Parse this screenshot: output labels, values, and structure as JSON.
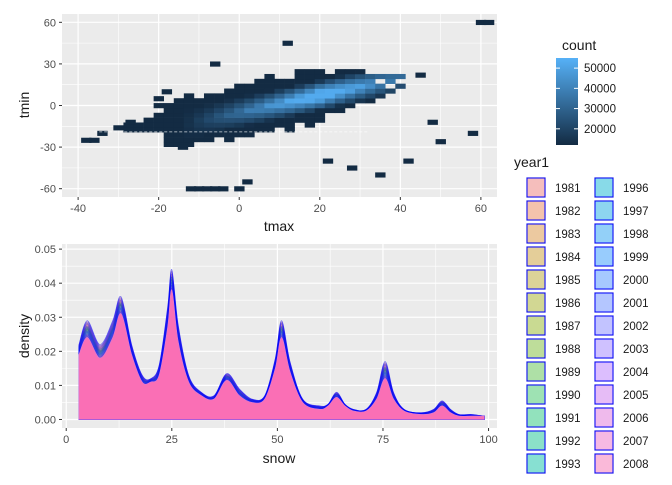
{
  "chart_data": [
    {
      "type": "heatmap",
      "xlabel": "tmax",
      "ylabel": "tmin",
      "xlim": [
        -44,
        64
      ],
      "ylim": [
        -66,
        66
      ],
      "xticks": [
        "-40",
        "-20",
        "0",
        "20",
        "40",
        "60"
      ],
      "yticks": [
        "-60",
        "-30",
        "0",
        "30",
        "60"
      ],
      "legend": {
        "title": "count",
        "ticks": [
          "20000",
          "30000",
          "40000",
          "50000"
        ],
        "range": [
          12000,
          55000
        ],
        "low_color": "#132B43",
        "high_color": "#56B1F7",
        "placement": "right"
      },
      "grid": true
    },
    {
      "type": "area",
      "xlabel": "snow",
      "ylabel": "density",
      "xlim": [
        -1,
        102
      ],
      "ylim": [
        -0.0025,
        0.0515
      ],
      "xticks": [
        "0",
        "25",
        "50",
        "75",
        "100"
      ],
      "yticks": [
        "0.00",
        "0.01",
        "0.02",
        "0.03",
        "0.04",
        "0.05"
      ],
      "x": [
        3,
        5,
        8,
        11,
        13,
        15.5,
        18,
        20,
        22,
        24,
        25,
        26.5,
        29,
        32,
        35,
        38,
        41,
        44,
        47,
        49.5,
        51,
        53,
        56,
        60,
        62,
        64,
        66,
        68,
        71,
        73.5,
        75.5,
        77.5,
        80,
        84,
        87,
        89,
        91,
        93,
        96,
        99
      ],
      "series_top": {
        "name": "1981",
        "values": [
          0.022,
          0.029,
          0.022,
          0.029,
          0.036,
          0.022,
          0.013,
          0.012,
          0.016,
          0.033,
          0.044,
          0.028,
          0.013,
          0.008,
          0.007,
          0.0135,
          0.009,
          0.006,
          0.007,
          0.018,
          0.029,
          0.017,
          0.006,
          0.004,
          0.0045,
          0.008,
          0.0045,
          0.003,
          0.003,
          0.008,
          0.017,
          0.008,
          0.003,
          0.002,
          0.003,
          0.0055,
          0.003,
          0.0015,
          0.0015,
          0.001
        ]
      },
      "series_bottom": {
        "name": "2008",
        "values": [
          0.019,
          0.024,
          0.018,
          0.024,
          0.031,
          0.019,
          0.011,
          0.011,
          0.013,
          0.027,
          0.038,
          0.023,
          0.011,
          0.007,
          0.006,
          0.0115,
          0.007,
          0.005,
          0.006,
          0.015,
          0.024,
          0.014,
          0.005,
          0.003,
          0.004,
          0.0065,
          0.004,
          0.0025,
          0.0025,
          0.006,
          0.012,
          0.006,
          0.0025,
          0.0015,
          0.002,
          0.004,
          0.002,
          0.001,
          0.001,
          0.001
        ]
      },
      "fill_colors": [
        "#F8766D",
        "#00BA38",
        "#619CFF",
        "#FF61C3"
      ],
      "line_color": "#0000FF",
      "legend": {
        "title": "year1",
        "col1": [
          "1981",
          "1982",
          "1983",
          "1984",
          "1985",
          "1986",
          "1987",
          "1988",
          "1989",
          "1990",
          "1991",
          "1992",
          "1993"
        ],
        "col2": [
          "1996",
          "1997",
          "1998",
          "1999",
          "2000",
          "2001",
          "2002",
          "2003",
          "2004",
          "2005",
          "2006",
          "2007",
          "2008"
        ],
        "col1_colors": [
          "#F5BEBC",
          "#F4C3AC",
          "#ECC9A0",
          "#E4CE99",
          "#DCD398",
          "#D2D793",
          "#C9DA92",
          "#BEDD9A",
          "#AEE0A6",
          "#9EE2B3",
          "#92E2BD",
          "#8BE1C8",
          "#87E0D2"
        ],
        "col2_colors": [
          "#88DAE8",
          "#8DD5F0",
          "#93D0F8",
          "#98CCFD",
          "#A6C9FF",
          "#B4C6FF",
          "#C2C3FF",
          "#CFC1FF",
          "#DCBEFE",
          "#E6BCF6",
          "#EFBAEC",
          "#F6B9E3",
          "#FAB9D9"
        ],
        "border_color": "#0000FF",
        "placement": "right"
      },
      "grid": true
    }
  ]
}
